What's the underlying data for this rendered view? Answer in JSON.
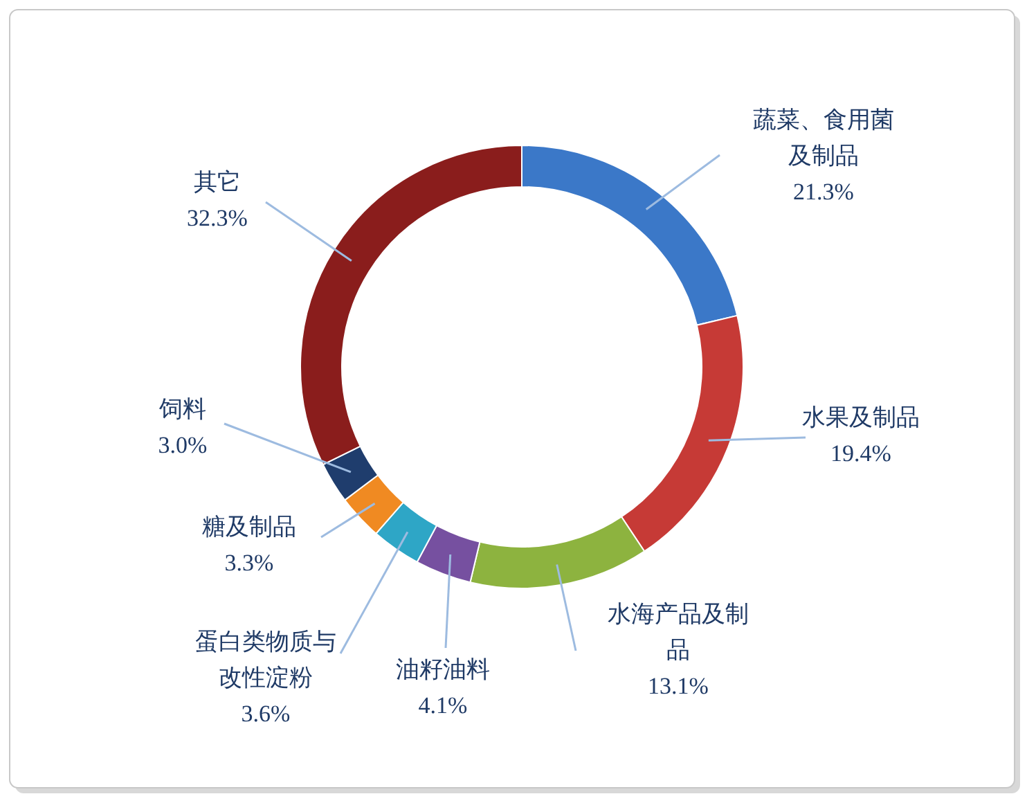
{
  "chart_data": {
    "type": "donut",
    "categories": [
      "蔬菜、食用菌及制品",
      "水果及制品",
      "水海产品及制品",
      "油籽油料",
      "蛋白类物质与改性淀粉",
      "糖及制品",
      "饲料",
      "其它"
    ],
    "values": [
      21.3,
      19.4,
      13.1,
      4.1,
      3.6,
      3.3,
      3.0,
      32.3
    ],
    "value_labels": [
      "21.3%",
      "19.4%",
      "13.1%",
      "4.1%",
      "3.6%",
      "3.3%",
      "3.0%",
      "32.3%"
    ],
    "colors": [
      "#3b78c8",
      "#c63a36",
      "#8db33f",
      "#7650a0",
      "#2ea6c6",
      "#f08a22",
      "#1f3d6d",
      "#8a1d1c"
    ],
    "legend": false
  }
}
